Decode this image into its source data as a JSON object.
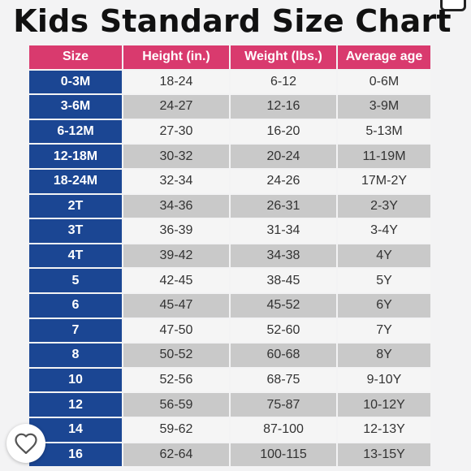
{
  "title": "Kids Standard Size Chart",
  "colors": {
    "header_bg": "#d93a6e",
    "size_column_bg": "#1b4693",
    "row_light": "#f5f5f5",
    "row_dark": "#c9c9c9"
  },
  "table": {
    "headers": [
      "Size",
      "Height (in.)",
      "Weight (lbs.)",
      "Average age"
    ],
    "rows": [
      [
        "0-3M",
        "18-24",
        "6-12",
        "0-6M"
      ],
      [
        "3-6M",
        "24-27",
        "12-16",
        "3-9M"
      ],
      [
        "6-12M",
        "27-30",
        "16-20",
        "5-13M"
      ],
      [
        "12-18M",
        "30-32",
        "20-24",
        "11-19M"
      ],
      [
        "18-24M",
        "32-34",
        "24-26",
        "17M-2Y"
      ],
      [
        "2T",
        "34-36",
        "26-31",
        "2-3Y"
      ],
      [
        "3T",
        "36-39",
        "31-34",
        "3-4Y"
      ],
      [
        "4T",
        "39-42",
        "34-38",
        "4Y"
      ],
      [
        "5",
        "42-45",
        "38-45",
        "5Y"
      ],
      [
        "6",
        "45-47",
        "45-52",
        "6Y"
      ],
      [
        "7",
        "47-50",
        "52-60",
        "7Y"
      ],
      [
        "8",
        "50-52",
        "60-68",
        "8Y"
      ],
      [
        "10",
        "52-56",
        "68-75",
        "9-10Y"
      ],
      [
        "12",
        "56-59",
        "75-87",
        "10-12Y"
      ],
      [
        "14",
        "59-62",
        "87-100",
        "12-13Y"
      ],
      [
        "16",
        "62-64",
        "100-115",
        "13-15Y"
      ]
    ]
  },
  "icons": {
    "favorite": "heart-outline-icon"
  }
}
